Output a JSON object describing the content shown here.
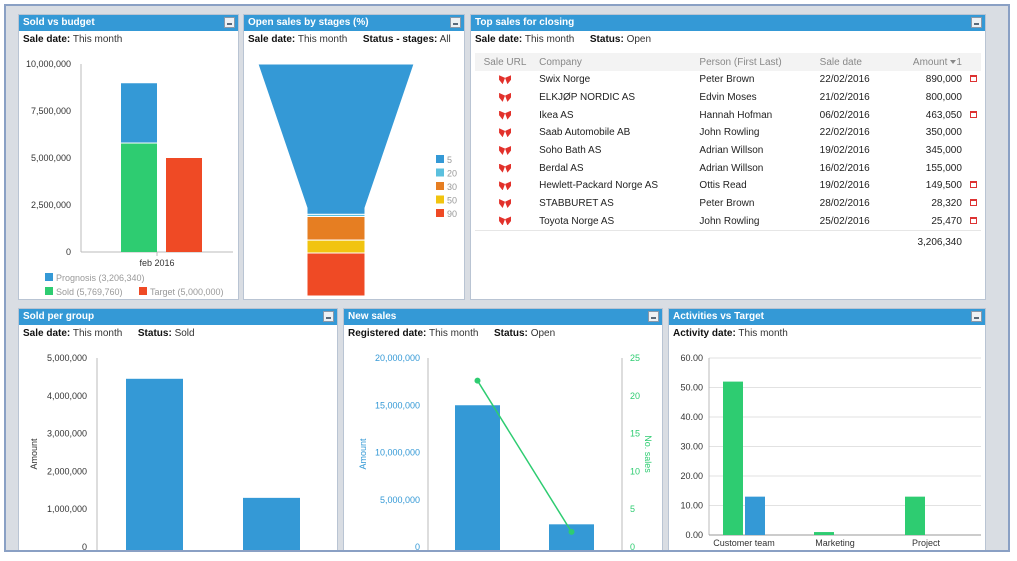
{
  "panels": {
    "sold_vs_budget": {
      "title": "Sold vs budget",
      "filter_label": "Sale date:",
      "filter_value": "This month"
    },
    "open_sales_by_stages": {
      "title": "Open sales by stages (%)",
      "filter1_label": "Sale date:",
      "filter1_value": "This month",
      "filter2_label": "Status - stages:",
      "filter2_value": "All"
    },
    "top_sales_for_closing": {
      "title": "Top sales for closing",
      "filter1_label": "Sale date:",
      "filter1_value": "This month",
      "filter2_label": "Status:",
      "filter2_value": "Open",
      "columns": [
        "Sale URL",
        "Company",
        "Person (First Last)",
        "Sale date",
        "Amount"
      ],
      "sort_indicator": "1",
      "rows": [
        {
          "company": "Swix Norge",
          "person": "Peter Brown",
          "date": "22/02/2016",
          "amount": "890,000",
          "calendar": true
        },
        {
          "company": "ELKJØP NORDIC AS",
          "person": "Edvin Moses",
          "date": "21/02/2016",
          "amount": "800,000",
          "calendar": false
        },
        {
          "company": "Ikea AS",
          "person": "Hannah Hofman",
          "date": "06/02/2016",
          "amount": "463,050",
          "calendar": true
        },
        {
          "company": "Saab Automobile AB",
          "person": "John Rowling",
          "date": "22/02/2016",
          "amount": "350,000",
          "calendar": false
        },
        {
          "company": "Soho Bath AS",
          "person": "Adrian Willson",
          "date": "19/02/2016",
          "amount": "345,000",
          "calendar": false
        },
        {
          "company": "Berdal AS",
          "person": "Adrian Willson",
          "date": "16/02/2016",
          "amount": "155,000",
          "calendar": false
        },
        {
          "company": "Hewlett-Packard Norge AS",
          "person": "Ottis Read",
          "date": "19/02/2016",
          "amount": "149,500",
          "calendar": true
        },
        {
          "company": "STABBURET AS",
          "person": "Peter Brown",
          "date": "28/02/2016",
          "amount": "28,320",
          "calendar": true
        },
        {
          "company": "Toyota Norge AS",
          "person": "John Rowling",
          "date": "25/02/2016",
          "amount": "25,470",
          "calendar": true
        }
      ],
      "total": "3,206,340",
      "calendar_icon": "calendar-icon",
      "company_logo_icon": "superoffice-logo-icon"
    },
    "sold_per_group": {
      "title": "Sold per group",
      "filter1_label": "Sale date:",
      "filter1_value": "This month",
      "filter2_label": "Status:",
      "filter2_value": "Sold"
    },
    "new_sales": {
      "title": "New sales",
      "filter1_label": "Registered date:",
      "filter1_value": "This month",
      "filter2_label": "Status:",
      "filter2_value": "Open"
    },
    "activities_vs_target": {
      "title": "Activities vs Target",
      "filter_label": "Activity date:",
      "filter_value": "This month"
    }
  },
  "colors": {
    "header_blue": "#3499d6",
    "blue": "#3499d6",
    "green": "#2ecc71",
    "red": "#ef4a25",
    "orange": "#e67e22",
    "yellow": "#f1c40f",
    "teal": "#5bc0de"
  },
  "chart_data": [
    {
      "id": "sold_vs_budget",
      "type": "bar",
      "stacked": true,
      "categories": [
        "feb 2016"
      ],
      "series": [
        {
          "name": "Prognosis (3,206,340)",
          "values": [
            3206340
          ],
          "color": "#3499d6",
          "stack": "actual"
        },
        {
          "name": "Sold (5,769,760)",
          "values": [
            5769760
          ],
          "color": "#2ecc71",
          "stack": "actual"
        },
        {
          "name": "Target (5,000,000)",
          "values": [
            5000000
          ],
          "color": "#ef4a25",
          "stack": "target"
        }
      ],
      "ylim": [
        0,
        10000000
      ],
      "yticks": [
        "0",
        "2,500,000",
        "5,000,000",
        "7,500,000",
        "10,000,000"
      ],
      "ytick_values": [
        0,
        2500000,
        5000000,
        7500000,
        10000000
      ],
      "legend_position": "bottom"
    },
    {
      "id": "open_sales_by_stages",
      "type": "funnel",
      "stages": [
        {
          "name": "5",
          "value": 70,
          "color": "#3499d6"
        },
        {
          "name": "20",
          "value": 1,
          "color": "#5bc0de"
        },
        {
          "name": "30",
          "value": 11,
          "color": "#e67e22"
        },
        {
          "name": "50",
          "value": 6,
          "color": "#f1c40f"
        },
        {
          "name": "90",
          "value": 20,
          "color": "#ef4a25"
        }
      ],
      "legend_position": "right"
    },
    {
      "id": "sold_per_group",
      "type": "bar",
      "categories": [
        "",
        ""
      ],
      "values": [
        4450000,
        1300000
      ],
      "color": "#3499d6",
      "ylabel": "Amount",
      "ylim": [
        0,
        5000000
      ],
      "yticks": [
        "0",
        "1,000,000",
        "2,000,000",
        "3,000,000",
        "4,000,000",
        "5,000,000"
      ],
      "ytick_values": [
        0,
        1000000,
        2000000,
        3000000,
        4000000,
        5000000
      ]
    },
    {
      "id": "new_sales",
      "type": "bar",
      "categories": [
        "",
        ""
      ],
      "series": [
        {
          "name": "Amount",
          "kind": "bar",
          "values": [
            15000000,
            2400000
          ],
          "color": "#3499d6",
          "axis": "left"
        },
        {
          "name": "No. sales",
          "kind": "line",
          "values": [
            22,
            2
          ],
          "color": "#2ecc71",
          "axis": "right"
        }
      ],
      "ylabel": "Amount",
      "y2label": "No. sales",
      "ylim": [
        0,
        20000000
      ],
      "y2lim": [
        0,
        25
      ],
      "yticks": [
        "0",
        "5,000,000",
        "10,000,000",
        "15,000,000",
        "20,000,000"
      ],
      "ytick_values": [
        0,
        5000000,
        10000000,
        15000000,
        20000000
      ],
      "y2ticks": [
        "0",
        "5",
        "10",
        "15",
        "20",
        "25"
      ],
      "y2tick_values": [
        0,
        5,
        10,
        15,
        20,
        25
      ]
    },
    {
      "id": "activities_vs_target",
      "type": "bar",
      "categories": [
        "Customer team",
        "Marketing",
        "Project"
      ],
      "series": [
        {
          "name": "",
          "values": [
            52,
            1,
            13
          ],
          "color": "#2ecc71"
        },
        {
          "name": "",
          "values": [
            13,
            0,
            0
          ],
          "color": "#3499d6"
        }
      ],
      "ylim": [
        0,
        60
      ],
      "yticks": [
        "0.00",
        "10.00",
        "20.00",
        "30.00",
        "40.00",
        "50.00",
        "60.00"
      ],
      "ytick_values": [
        0,
        10,
        20,
        30,
        40,
        50,
        60
      ]
    }
  ]
}
